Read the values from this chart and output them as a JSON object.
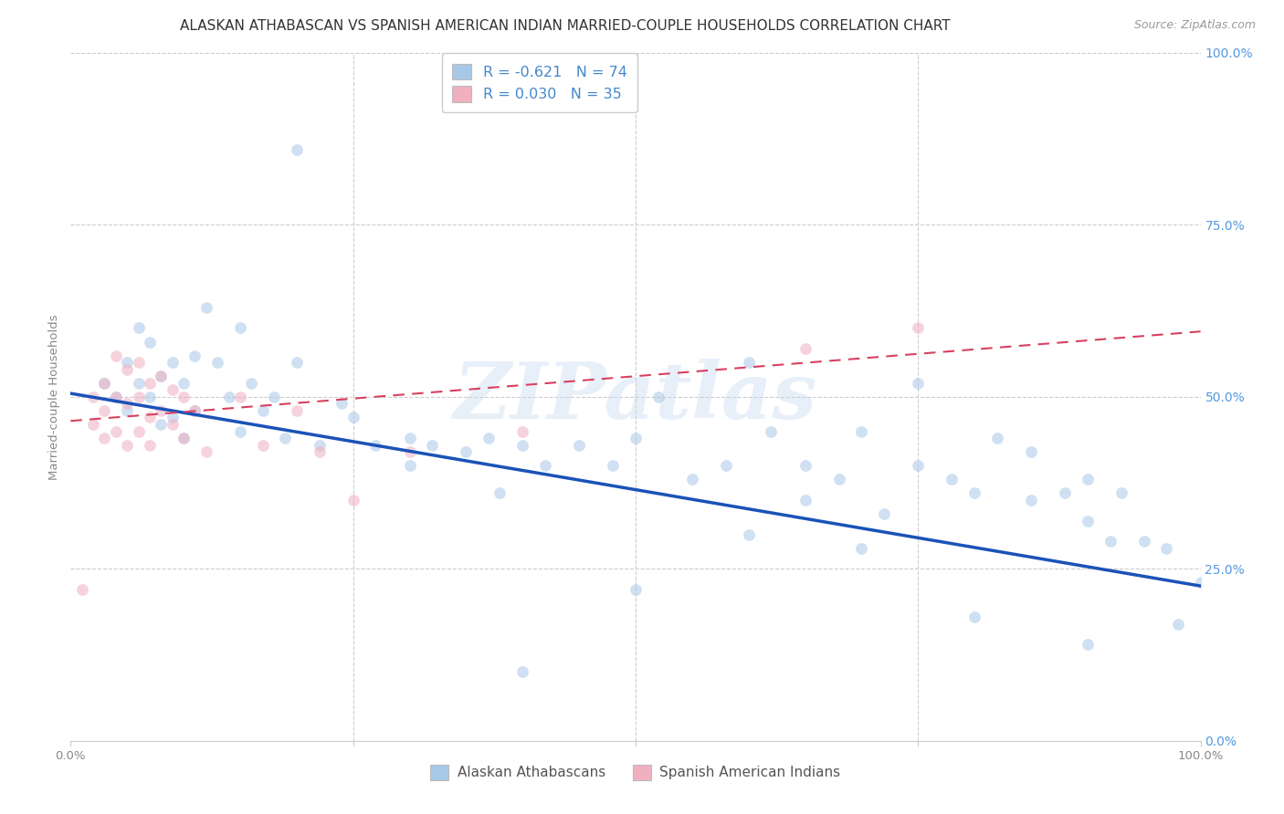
{
  "title": "ALASKAN ATHABASCAN VS SPANISH AMERICAN INDIAN MARRIED-COUPLE HOUSEHOLDS CORRELATION CHART",
  "source": "Source: ZipAtlas.com",
  "ylabel": "Married-couple Households",
  "grid_color": "#cccccc",
  "background_color": "#ffffff",
  "blue_color": "#a8c8e8",
  "pink_color": "#f0b0c0",
  "blue_line_color": "#1a52b8",
  "pink_line_color": "#d84060",
  "right_axis_color": "#5599dd",
  "legend_text_color": "#4488cc",
  "legend_R1": "R = -0.621",
  "legend_N1": "N = 74",
  "legend_R2": "R = 0.030",
  "legend_N2": "N = 35",
  "watermark": "ZIPatlas",
  "blue_scatter_x": [
    0.03,
    0.04,
    0.05,
    0.05,
    0.06,
    0.06,
    0.07,
    0.07,
    0.08,
    0.08,
    0.09,
    0.09,
    0.1,
    0.1,
    0.11,
    0.11,
    0.12,
    0.13,
    0.14,
    0.15,
    0.15,
    0.16,
    0.17,
    0.18,
    0.19,
    0.2,
    0.22,
    0.24,
    0.25,
    0.27,
    0.3,
    0.32,
    0.35,
    0.37,
    0.38,
    0.4,
    0.42,
    0.45,
    0.48,
    0.5,
    0.52,
    0.55,
    0.58,
    0.6,
    0.62,
    0.65,
    0.65,
    0.68,
    0.7,
    0.72,
    0.75,
    0.75,
    0.78,
    0.8,
    0.82,
    0.85,
    0.85,
    0.88,
    0.9,
    0.9,
    0.92,
    0.93,
    0.95,
    0.97,
    0.98,
    1.0,
    0.2,
    0.3,
    0.4,
    0.5,
    0.6,
    0.7,
    0.8,
    0.9
  ],
  "blue_scatter_y": [
    0.52,
    0.5,
    0.55,
    0.48,
    0.6,
    0.52,
    0.58,
    0.5,
    0.53,
    0.46,
    0.55,
    0.47,
    0.52,
    0.44,
    0.56,
    0.48,
    0.63,
    0.55,
    0.5,
    0.6,
    0.45,
    0.52,
    0.48,
    0.5,
    0.44,
    0.55,
    0.43,
    0.49,
    0.47,
    0.43,
    0.44,
    0.43,
    0.42,
    0.44,
    0.36,
    0.43,
    0.4,
    0.43,
    0.4,
    0.44,
    0.5,
    0.38,
    0.4,
    0.55,
    0.45,
    0.4,
    0.35,
    0.38,
    0.45,
    0.33,
    0.52,
    0.4,
    0.38,
    0.36,
    0.44,
    0.35,
    0.42,
    0.36,
    0.38,
    0.32,
    0.29,
    0.36,
    0.29,
    0.28,
    0.17,
    0.23,
    0.86,
    0.4,
    0.1,
    0.22,
    0.3,
    0.28,
    0.18,
    0.14
  ],
  "pink_scatter_x": [
    0.01,
    0.02,
    0.02,
    0.03,
    0.03,
    0.03,
    0.04,
    0.04,
    0.04,
    0.05,
    0.05,
    0.05,
    0.06,
    0.06,
    0.06,
    0.07,
    0.07,
    0.07,
    0.08,
    0.08,
    0.09,
    0.09,
    0.1,
    0.1,
    0.11,
    0.12,
    0.15,
    0.17,
    0.2,
    0.22,
    0.25,
    0.3,
    0.4,
    0.65,
    0.75
  ],
  "pink_scatter_y": [
    0.22,
    0.5,
    0.46,
    0.52,
    0.48,
    0.44,
    0.56,
    0.5,
    0.45,
    0.54,
    0.49,
    0.43,
    0.55,
    0.5,
    0.45,
    0.52,
    0.47,
    0.43,
    0.53,
    0.48,
    0.51,
    0.46,
    0.5,
    0.44,
    0.48,
    0.42,
    0.5,
    0.43,
    0.48,
    0.42,
    0.35,
    0.42,
    0.45,
    0.57,
    0.6
  ],
  "blue_trend_x0": 0.0,
  "blue_trend_y0": 0.505,
  "blue_trend_x1": 1.0,
  "blue_trend_y1": 0.225,
  "pink_trend_x0": 0.0,
  "pink_trend_y0": 0.465,
  "pink_trend_x1": 1.0,
  "pink_trend_y1": 0.595,
  "ytick_positions": [
    0.0,
    0.25,
    0.5,
    0.75,
    1.0
  ],
  "ytick_labels_right": [
    "0.0%",
    "25.0%",
    "50.0%",
    "75.0%",
    "100.0%"
  ],
  "xtick_positions": [
    0.0,
    0.25,
    0.5,
    0.75,
    1.0
  ],
  "title_fontsize": 11,
  "tick_fontsize": 9.5,
  "ylabel_fontsize": 9.5,
  "scatter_size": 85,
  "scatter_alpha": 0.55
}
